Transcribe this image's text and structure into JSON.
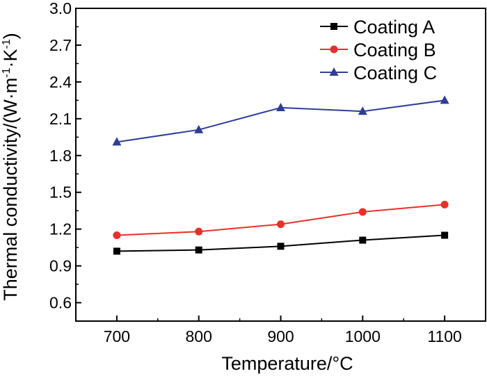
{
  "chart_data": {
    "type": "line",
    "title": "",
    "xlabel": "Temperature/°C",
    "ylabel_main": "Thermal conductivity/(W·m",
    "ylabel_sup1": "-1",
    "ylabel_mid": "·K",
    "ylabel_sup2": "-1",
    "ylabel_end": ")",
    "x": [
      700,
      800,
      900,
      1000,
      1100
    ],
    "xticks": [
      "700",
      "800",
      "900",
      "1000",
      "1100"
    ],
    "xlim": [
      650,
      1150
    ],
    "yticks": [
      "0.6",
      "0.9",
      "1.2",
      "1.5",
      "1.8",
      "2.1",
      "2.4",
      "2.7",
      "3.0"
    ],
    "ylim": [
      0.45,
      3.0
    ],
    "legend_position": "top-right",
    "series": [
      {
        "name": "Coating A",
        "marker": "square",
        "color": "#000000",
        "values": [
          1.02,
          1.03,
          1.06,
          1.11,
          1.15
        ]
      },
      {
        "name": "Coating B",
        "marker": "circle",
        "color": "#e8302a",
        "values": [
          1.15,
          1.18,
          1.24,
          1.34,
          1.4
        ]
      },
      {
        "name": "Coating C",
        "marker": "triangle",
        "color": "#2e3d96",
        "values": [
          1.91,
          2.01,
          2.19,
          2.16,
          2.25
        ]
      }
    ]
  }
}
